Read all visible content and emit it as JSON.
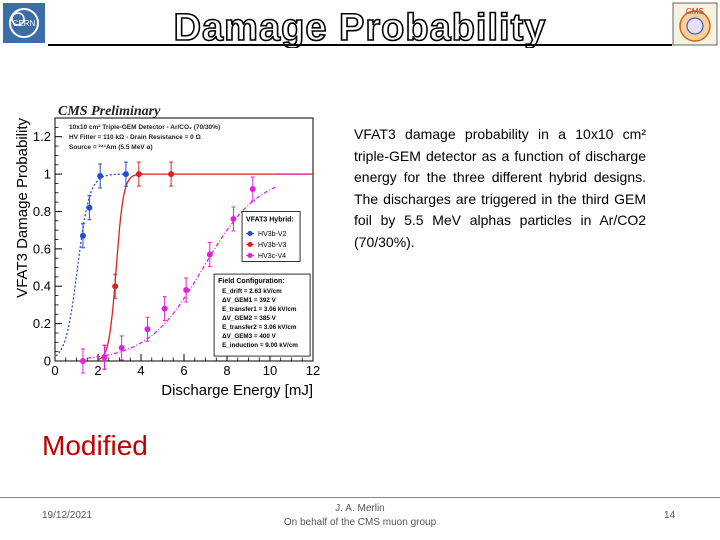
{
  "slide": {
    "title": "Damage Probability",
    "description": "VFAT3 damage probability in a 10x10 cm² triple-GEM detector as a function of discharge energy for the three different hybrid designs. The discharges are triggered in the third GEM foil by 5.5 MeV alphas particles in Ar/CO2 (70/30%).",
    "modified": "Modified",
    "footer": {
      "date": "19/12/2021",
      "author": "J. A. Merlin",
      "group": "On behalf of the CMS muon group",
      "page": "14"
    },
    "logos": {
      "left": "CERN",
      "right": "CMS"
    }
  },
  "chart_data": {
    "type": "scatter",
    "banner": "CMS Preliminary",
    "header_lines": [
      "10x10 cm² Triple-GEM Detector - Ar/CO₂ (70/30%)",
      "HV Filter = 110 kΩ - Drain Resistance = 0 Ω",
      "Source = ²⁴¹Am (5.5 MeV α)"
    ],
    "xlabel": "Discharge Energy [mJ]",
    "ylabel": "VFAT3 Damage Probability",
    "xlim": [
      0,
      12
    ],
    "ylim": [
      0,
      1.3
    ],
    "xticks": [
      0,
      2,
      4,
      6,
      8,
      10,
      12
    ],
    "yticks": [
      0,
      0.2,
      0.4,
      0.6,
      0.8,
      1,
      1.2
    ],
    "legend_title": "VFAT3 Hybrid:",
    "legend_position": "center-right",
    "series": [
      {
        "name": "HV3b-V2",
        "color": "#1f4fd6",
        "x": [
          1.3,
          1.6,
          2.1,
          3.3
        ],
        "y": [
          0.67,
          0.82,
          0.99,
          1.0
        ]
      },
      {
        "name": "HV3b-V3",
        "color": "#e02020",
        "x": [
          2.3,
          2.8,
          3.9,
          5.4
        ],
        "y": [
          0.02,
          0.4,
          1.0,
          1.0
        ]
      },
      {
        "name": "HV3c-V4",
        "color": "#e020e0",
        "x": [
          1.3,
          2.3,
          3.1,
          4.3,
          5.1,
          6.1,
          7.2,
          8.3,
          9.2
        ],
        "y": [
          0.0,
          0.02,
          0.07,
          0.17,
          0.28,
          0.38,
          0.57,
          0.76,
          0.92
        ]
      }
    ],
    "field_configuration": {
      "title": "Field Configuration:",
      "lines": [
        "E_drift = 2.63 kV/cm",
        "ΔV_GEM1 = 392 V",
        "E_transfer1 = 3.06 kV/cm",
        "ΔV_GEM2 = 385 V",
        "E_transfer2 = 3.06 kV/cm",
        "ΔV_GEM3 = 400 V",
        "E_induction = 9.00 kV/cm"
      ]
    }
  }
}
